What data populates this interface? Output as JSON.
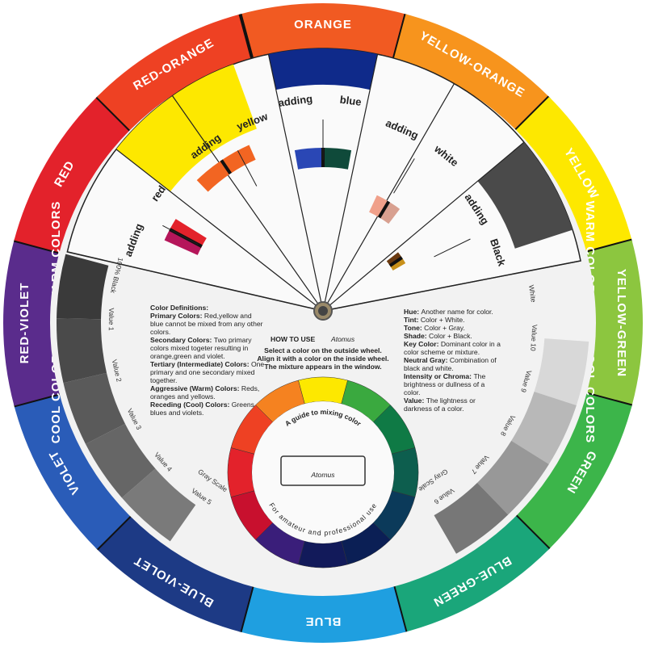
{
  "outer_ring": [
    {
      "label": "ORANGE",
      "color": "#f15a22"
    },
    {
      "label": "YELLOW-ORANGE",
      "color": "#f7941d"
    },
    {
      "label": "YELLOW",
      "color": "#fde800"
    },
    {
      "label": "YELLOW-GREEN",
      "color": "#8cc63f"
    },
    {
      "label": "GREEN",
      "color": "#3cb54a"
    },
    {
      "label": "BLUE-GREEN",
      "color": "#1aa67a"
    },
    {
      "label": "BLUE",
      "color": "#1f9fe0"
    },
    {
      "label": "BLUE-VIOLET",
      "color": "#1d3a85"
    },
    {
      "label": "VIOLET",
      "color": "#2a5cb8"
    },
    {
      "label": "RED-VIOLET",
      "color": "#5a2c8c"
    },
    {
      "label": "RED",
      "color": "#e3222b"
    },
    {
      "label": "RED-ORANGE",
      "color": "#ee4123"
    }
  ],
  "temperature": {
    "warm": "WARM COLORS",
    "cool": "COOL COLORS"
  },
  "window_labels": [
    {
      "adding": "adding",
      "color": "red"
    },
    {
      "adding": "adding",
      "color": "yellow"
    },
    {
      "adding": "adding",
      "color": "blue"
    },
    {
      "adding": "adding",
      "color": "white"
    },
    {
      "adding": "adding",
      "color": "Black"
    }
  ],
  "gray_scale_left": [
    "100% Black",
    "Value 1",
    "Value 2",
    "Value 3",
    "Value 4",
    "Value 5",
    "Gray Scale"
  ],
  "gray_scale_right": [
    "White",
    "Value 10",
    "Value 9",
    "Value 8",
    "Value 7",
    "Value 6",
    "Gray Scale"
  ],
  "definitions_left": [
    {
      "term": "Color Definitions:",
      "text": ""
    },
    {
      "term": "Primary Colors:",
      "text": "Red,yellow and blue cannot be mixed from any other colors."
    },
    {
      "term": "Secondary Colors:",
      "text": "Two primary colors mixed togeter resulting in orange,green and violet."
    },
    {
      "term": "Tertiary (Intermediate) Colors:",
      "text": "One primary and one secondary mixed together."
    },
    {
      "term": "Aggressive (Warm) Colors:",
      "text": "Reds, oranges and yellows."
    },
    {
      "term": "Receding (Cool) Colors:",
      "text": "Greens, blues and violets."
    }
  ],
  "definitions_right": [
    {
      "term": "Hue:",
      "text": "Another name for color."
    },
    {
      "term": "Tint:",
      "text": "Color + White."
    },
    {
      "term": "Tone:",
      "text": "Color + Gray."
    },
    {
      "term": "Shade:",
      "text": "Color + Black."
    },
    {
      "term": "Key Color:",
      "text": "Dominant color in a color scheme or mixture."
    },
    {
      "term": "Neutral Gray:",
      "text": "Combination of black and white."
    },
    {
      "term": "Intensity or Chroma:",
      "text": "The brightness or dullness of a color."
    },
    {
      "term": "Value:",
      "text": "The lightness or darkness of a color."
    }
  ],
  "how_to_use": {
    "title": "HOW TO USE",
    "brand": "Atomus",
    "lines": [
      "Select a color on the outside wheel.",
      "Align it with a color on the inside wheel.",
      "The mixture appears in the window."
    ]
  },
  "inner_wheel": {
    "top_text": "A guide to mixing color",
    "brand": "Atomus",
    "bottom_text": "For amateur and professional use",
    "colors": [
      "#fde800",
      "#3aa93f",
      "#0f7a45",
      "#0d5e4e",
      "#0b3a5a",
      "#0b1f55",
      "#121a5a",
      "#3a1e7a",
      "#c8102e",
      "#e3222b",
      "#ee4123",
      "#f58220"
    ]
  }
}
